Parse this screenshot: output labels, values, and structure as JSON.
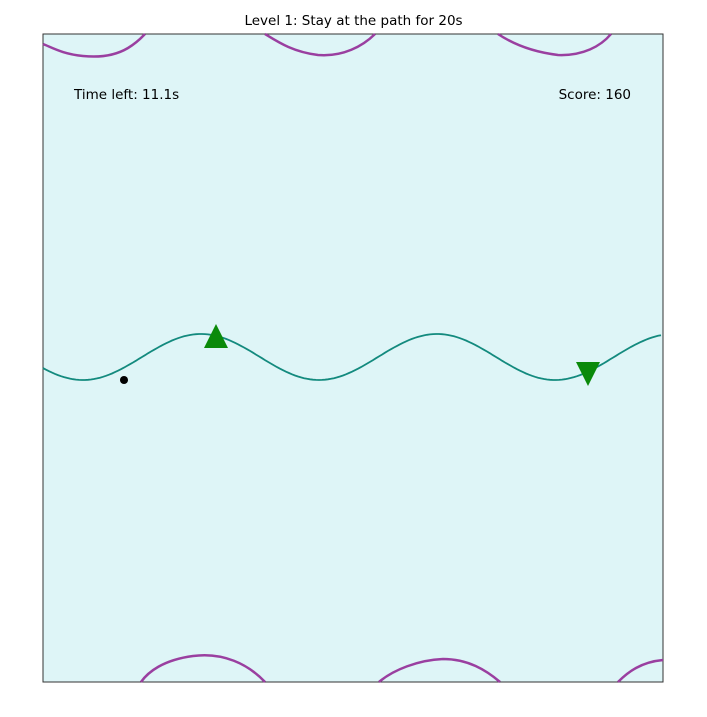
{
  "game": {
    "title": "Level 1: Stay at the path for 20s",
    "time_left": "Time left: 11.1s",
    "score": "Score: 160"
  },
  "colors": {
    "board_bg": "#def5f7",
    "board_border": "#333333",
    "path": "#138a7e",
    "obstacle": "#9a3fa0",
    "marker": "#0a8a0a",
    "player": "#000000"
  },
  "markers": [
    {
      "name": "up-triangle-marker",
      "shape": "triangle-up"
    },
    {
      "name": "down-triangle-marker",
      "shape": "triangle-down"
    }
  ]
}
